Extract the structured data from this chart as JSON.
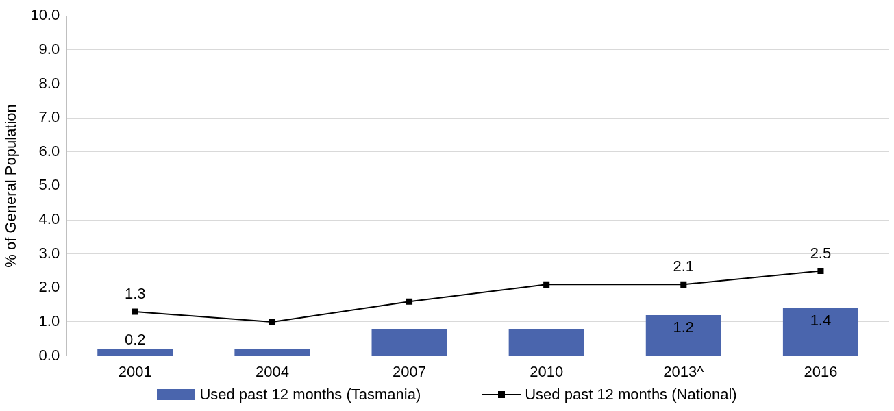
{
  "chart_data": {
    "type": "bar",
    "ylabel": "% of General Population",
    "categories": [
      "2001",
      "2004",
      "2007",
      "2010",
      "2013^",
      "2016"
    ],
    "series": [
      {
        "name": "Used past 12 months (Tasmania)",
        "color": "#4a65ad",
        "values": [
          0.2,
          0.2,
          0.8,
          0.8,
          1.2,
          1.4
        ],
        "value_labels": [
          "0.2",
          null,
          null,
          null,
          "1.2",
          "1.4"
        ]
      },
      {
        "type": "line",
        "name": "Used past 12 months (National)",
        "color": "#000000",
        "values": [
          1.3,
          1.0,
          1.6,
          2.1,
          2.1,
          2.5
        ],
        "value_labels": [
          "1.3",
          null,
          null,
          null,
          "2.1",
          "2.5"
        ]
      }
    ],
    "ylim": [
      0,
      10
    ],
    "yticks": [
      {
        "value": 0,
        "label": "0.0"
      },
      {
        "value": 1,
        "label": "1.0"
      },
      {
        "value": 2,
        "label": "2.0"
      },
      {
        "value": 3,
        "label": "3.0"
      },
      {
        "value": 4,
        "label": "4.0"
      },
      {
        "value": 5,
        "label": "5.0"
      },
      {
        "value": 6,
        "label": "6.0"
      },
      {
        "value": 7,
        "label": "7.0"
      },
      {
        "value": 8,
        "label": "8.0"
      },
      {
        "value": 9,
        "label": "9.0"
      },
      {
        "value": 10,
        "label": "10.0"
      }
    ],
    "grid": "y",
    "legend": "bottom",
    "marker": "square",
    "line_style": "solid"
  }
}
